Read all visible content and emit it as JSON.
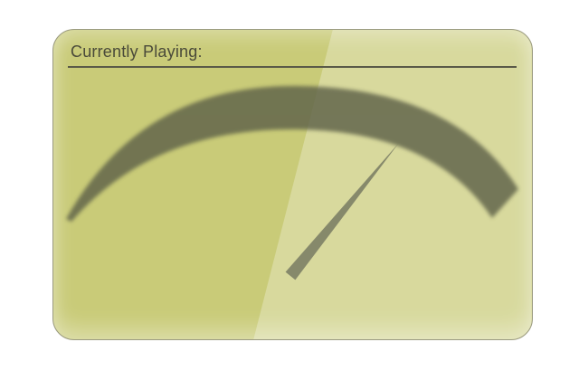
{
  "header": {
    "title": "Currently Playing:"
  },
  "gauge": {
    "needle_level": 0.78
  },
  "colors": {
    "panel": "#c9cb78",
    "panel_light": "#d8da9a",
    "arc": "#5f6248",
    "needle": "#7d8066",
    "rule": "#5a5a48",
    "text": "#4a4a3a"
  }
}
